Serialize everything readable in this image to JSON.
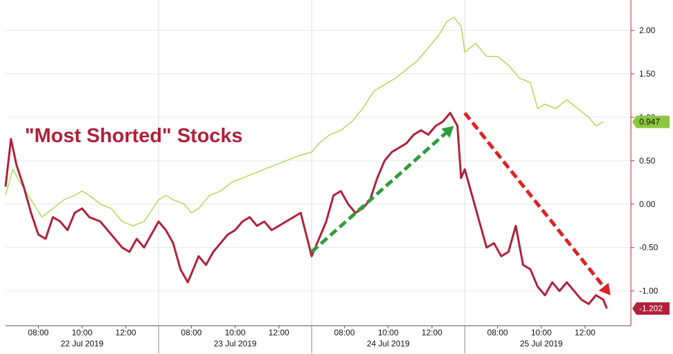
{
  "chart_data": {
    "type": "line",
    "title": "",
    "annotation": "\"Most Shorted\" Stocks",
    "annotation_color": "#b0203a",
    "y_axis": {
      "side": "right",
      "ylim": [
        -1.4,
        2.35
      ],
      "ticks": [
        2.0,
        1.5,
        1.0,
        0.5,
        0.0,
        -0.5,
        -1.0
      ],
      "tick_labels": [
        "2.00",
        "1.50",
        "1.00",
        "0.50",
        "0.00",
        "-0.50",
        "-1.00"
      ],
      "color": "#c0203a"
    },
    "x_axis": {
      "time_labels": [
        "08:00",
        "10:00",
        "12:00",
        "08:00",
        "10:00",
        "12:00",
        "08:00",
        "10:00",
        "12:00",
        "08:00",
        "10:00",
        "12:00"
      ],
      "date_labels": [
        "22 Jul 2019",
        "23 Jul 2019",
        "24 Jul 2019",
        "25 Jul 2019"
      ]
    },
    "grid": true,
    "series": [
      {
        "name": "",
        "color": "#a8d84a",
        "last_value_label": "0.947",
        "badge_color": "#8dc63f",
        "x": [
          "22 Jul 2019 06:30",
          "22 Jul 2019 06:50",
          "22 Jul 2019 07:10",
          "22 Jul 2019 07:40",
          "22 Jul 2019 08:10",
          "22 Jul 2019 08:40",
          "22 Jul 2019 09:10",
          "22 Jul 2019 09:40",
          "22 Jul 2019 10:00",
          "22 Jul 2019 10:20",
          "22 Jul 2019 10:50",
          "22 Jul 2019 11:20",
          "22 Jul 2019 11:50",
          "22 Jul 2019 12:20",
          "22 Jul 2019 12:50",
          "23 Jul 2019 06:30",
          "23 Jul 2019 06:50",
          "23 Jul 2019 07:10",
          "23 Jul 2019 07:40",
          "23 Jul 2019 08:00",
          "23 Jul 2019 08:20",
          "23 Jul 2019 08:50",
          "23 Jul 2019 09:20",
          "23 Jul 2019 09:50",
          "23 Jul 2019 10:20",
          "23 Jul 2019 10:50",
          "23 Jul 2019 11:20",
          "23 Jul 2019 11:50",
          "23 Jul 2019 12:20",
          "23 Jul 2019 12:50",
          "24 Jul 2019 06:30",
          "24 Jul 2019 06:50",
          "24 Jul 2019 07:20",
          "24 Jul 2019 07:50",
          "24 Jul 2019 08:20",
          "24 Jul 2019 08:50",
          "24 Jul 2019 09:20",
          "24 Jul 2019 09:40",
          "24 Jul 2019 10:00",
          "24 Jul 2019 10:20",
          "24 Jul 2019 10:50",
          "24 Jul 2019 11:20",
          "24 Jul 2019 11:50",
          "24 Jul 2019 12:20",
          "24 Jul 2019 12:40",
          "24 Jul 2019 13:00",
          "24 Jul 2019 13:20",
          "25 Jul 2019 06:30",
          "25 Jul 2019 07:00",
          "25 Jul 2019 07:30",
          "25 Jul 2019 08:00",
          "25 Jul 2019 08:30",
          "25 Jul 2019 09:00",
          "25 Jul 2019 09:30",
          "25 Jul 2019 09:50",
          "25 Jul 2019 10:10",
          "25 Jul 2019 10:40",
          "25 Jul 2019 11:10",
          "25 Jul 2019 11:40",
          "25 Jul 2019 12:10",
          "25 Jul 2019 12:30",
          "25 Jul 2019 12:50"
        ],
        "values": [
          0.1,
          0.4,
          0.25,
          0.05,
          -0.15,
          -0.05,
          0.05,
          0.1,
          0.15,
          0.1,
          0.0,
          -0.05,
          -0.2,
          -0.25,
          -0.2,
          0.05,
          0.1,
          0.05,
          0.0,
          -0.1,
          -0.05,
          0.1,
          0.15,
          0.25,
          0.3,
          0.35,
          0.4,
          0.45,
          0.5,
          0.55,
          0.6,
          0.7,
          0.8,
          0.85,
          0.95,
          1.1,
          1.3,
          1.35,
          1.4,
          1.45,
          1.55,
          1.65,
          1.8,
          1.95,
          2.1,
          2.15,
          2.05,
          1.75,
          1.85,
          1.7,
          1.7,
          1.6,
          1.45,
          1.4,
          1.1,
          1.15,
          1.1,
          1.2,
          1.1,
          1.0,
          0.9,
          0.947
        ]
      },
      {
        "name": "",
        "color": "#b0203a",
        "last_value_label": "-1.202",
        "badge_color": "#b0203a",
        "x": [
          "22 Jul 2019 06:30",
          "22 Jul 2019 06:45",
          "22 Jul 2019 07:00",
          "22 Jul 2019 07:20",
          "22 Jul 2019 07:40",
          "22 Jul 2019 08:00",
          "22 Jul 2019 08:20",
          "22 Jul 2019 08:40",
          "22 Jul 2019 09:00",
          "22 Jul 2019 09:20",
          "22 Jul 2019 09:40",
          "22 Jul 2019 10:00",
          "22 Jul 2019 10:20",
          "22 Jul 2019 10:50",
          "22 Jul 2019 11:20",
          "22 Jul 2019 11:50",
          "22 Jul 2019 12:10",
          "22 Jul 2019 12:30",
          "22 Jul 2019 12:50",
          "23 Jul 2019 06:30",
          "23 Jul 2019 06:50",
          "23 Jul 2019 07:10",
          "23 Jul 2019 07:30",
          "23 Jul 2019 07:50",
          "23 Jul 2019 08:00",
          "23 Jul 2019 08:20",
          "23 Jul 2019 08:40",
          "23 Jul 2019 09:00",
          "23 Jul 2019 09:20",
          "23 Jul 2019 09:40",
          "23 Jul 2019 10:00",
          "23 Jul 2019 10:20",
          "23 Jul 2019 10:40",
          "23 Jul 2019 11:00",
          "23 Jul 2019 11:20",
          "23 Jul 2019 11:40",
          "23 Jul 2019 12:00",
          "23 Jul 2019 12:20",
          "23 Jul 2019 12:40",
          "23 Jul 2019 13:00",
          "24 Jul 2019 06:30",
          "24 Jul 2019 06:50",
          "24 Jul 2019 07:10",
          "24 Jul 2019 07:30",
          "24 Jul 2019 07:50",
          "24 Jul 2019 08:10",
          "24 Jul 2019 08:30",
          "24 Jul 2019 08:50",
          "24 Jul 2019 09:10",
          "24 Jul 2019 09:30",
          "24 Jul 2019 09:50",
          "24 Jul 2019 10:10",
          "24 Jul 2019 10:30",
          "24 Jul 2019 10:50",
          "24 Jul 2019 11:10",
          "24 Jul 2019 11:30",
          "24 Jul 2019 11:50",
          "24 Jul 2019 12:10",
          "24 Jul 2019 12:30",
          "24 Jul 2019 12:50",
          "24 Jul 2019 13:10",
          "24 Jul 2019 13:20",
          "25 Jul 2019 06:30",
          "25 Jul 2019 06:50",
          "25 Jul 2019 07:10",
          "25 Jul 2019 07:30",
          "25 Jul 2019 07:50",
          "25 Jul 2019 08:10",
          "25 Jul 2019 08:30",
          "25 Jul 2019 08:50",
          "25 Jul 2019 09:10",
          "25 Jul 2019 09:30",
          "25 Jul 2019 09:50",
          "25 Jul 2019 10:10",
          "25 Jul 2019 10:30",
          "25 Jul 2019 10:50",
          "25 Jul 2019 11:10",
          "25 Jul 2019 11:30",
          "25 Jul 2019 11:50",
          "25 Jul 2019 12:10",
          "25 Jul 2019 12:30",
          "25 Jul 2019 12:50",
          "25 Jul 2019 13:00"
        ],
        "values": [
          0.2,
          0.75,
          0.45,
          0.2,
          -0.1,
          -0.35,
          -0.4,
          -0.15,
          -0.2,
          -0.3,
          -0.1,
          -0.05,
          -0.15,
          -0.2,
          -0.35,
          -0.5,
          -0.55,
          -0.4,
          -0.5,
          -0.2,
          -0.3,
          -0.45,
          -0.75,
          -0.9,
          -0.8,
          -0.6,
          -0.7,
          -0.55,
          -0.45,
          -0.35,
          -0.3,
          -0.2,
          -0.15,
          -0.25,
          -0.2,
          -0.3,
          -0.25,
          -0.2,
          -0.15,
          -0.1,
          -0.6,
          -0.4,
          -0.2,
          0.1,
          0.15,
          0.0,
          -0.1,
          -0.05,
          0.05,
          0.3,
          0.5,
          0.6,
          0.65,
          0.7,
          0.8,
          0.85,
          0.8,
          0.9,
          0.95,
          1.05,
          0.9,
          0.3,
          0.4,
          0.1,
          -0.2,
          -0.5,
          -0.45,
          -0.6,
          -0.55,
          -0.25,
          -0.7,
          -0.75,
          -0.95,
          -1.05,
          -0.9,
          -1.0,
          -0.9,
          -1.0,
          -1.1,
          -1.15,
          -1.05,
          -1.1,
          -1.202
        ]
      }
    ],
    "arrows": [
      {
        "color": "#2e9e3a",
        "from": {
          "x": "24 Jul 2019 06:30",
          "y": -0.55
        },
        "to": {
          "x": "24 Jul 2019 13:00",
          "y": 0.9
        }
      },
      {
        "color": "#e02020",
        "from": {
          "x": "25 Jul 2019 06:30",
          "y": 1.05
        },
        "to": {
          "x": "25 Jul 2019 13:10",
          "y": -1.05
        }
      }
    ]
  }
}
